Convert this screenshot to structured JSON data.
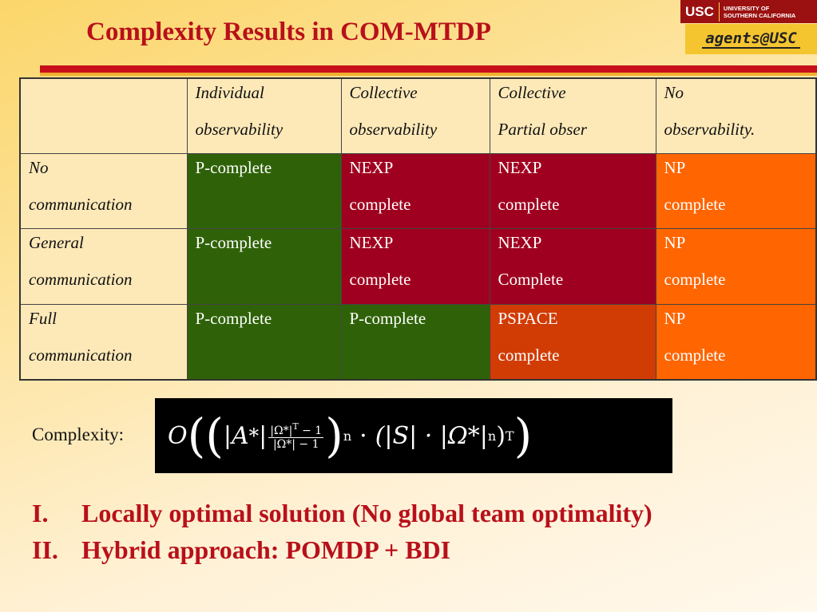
{
  "title": "Complexity Results in COM-MTDP",
  "logo": {
    "usc_mark": "USC",
    "university_line1": "UNIVERSITY OF",
    "university_line2": "SOUTHERN CALIFORNIA",
    "agents": "agents@USC"
  },
  "table": {
    "headers": [
      [
        "",
        ""
      ],
      [
        "Individual",
        "observability"
      ],
      [
        "Collective",
        "observability"
      ],
      [
        "Collective",
        "Partial obser"
      ],
      [
        "No",
        "observability."
      ]
    ],
    "rows": [
      {
        "label": [
          "No",
          "communication"
        ],
        "cells": [
          [
            "P-complete",
            ""
          ],
          [
            "NEXP",
            "complete"
          ],
          [
            "NEXP",
            "complete"
          ],
          [
            "NP",
            "complete"
          ]
        ]
      },
      {
        "label": [
          "General",
          "communication"
        ],
        "cells": [
          [
            "P-complete",
            ""
          ],
          [
            "NEXP",
            "complete"
          ],
          [
            "NEXP",
            "Complete"
          ],
          [
            "NP",
            "complete"
          ]
        ]
      },
      {
        "label": [
          "Full",
          "communication"
        ],
        "cells": [
          [
            "P-complete",
            ""
          ],
          [
            "P-complete",
            ""
          ],
          [
            "PSPACE",
            "complete"
          ],
          [
            "NP",
            "complete"
          ]
        ]
      }
    ]
  },
  "colors": {
    "title": "#b8101a",
    "p_complete": "#2f6208",
    "nexp_complete": "#a0001f",
    "np_complete": "#ff6500",
    "pspace_complete": "#d13c05"
  },
  "complexity": {
    "label": "Complexity:",
    "formula": {
      "O": "O",
      "A": "|A",
      "star": "*",
      "frac_num": "|Ω*|",
      "frac_num_exp": "T",
      "frac_num_tail": " − 1",
      "frac_den": "|Ω*| − 1",
      "n": "n",
      "dot": "·",
      "S": "(|S| · |Ω*|",
      "T": "T"
    }
  },
  "list": [
    {
      "num": "I.",
      "text": "Locally optimal solution (No global team optimality)"
    },
    {
      "num": "II.",
      "text": "Hybrid approach: POMDP + BDI"
    }
  ]
}
